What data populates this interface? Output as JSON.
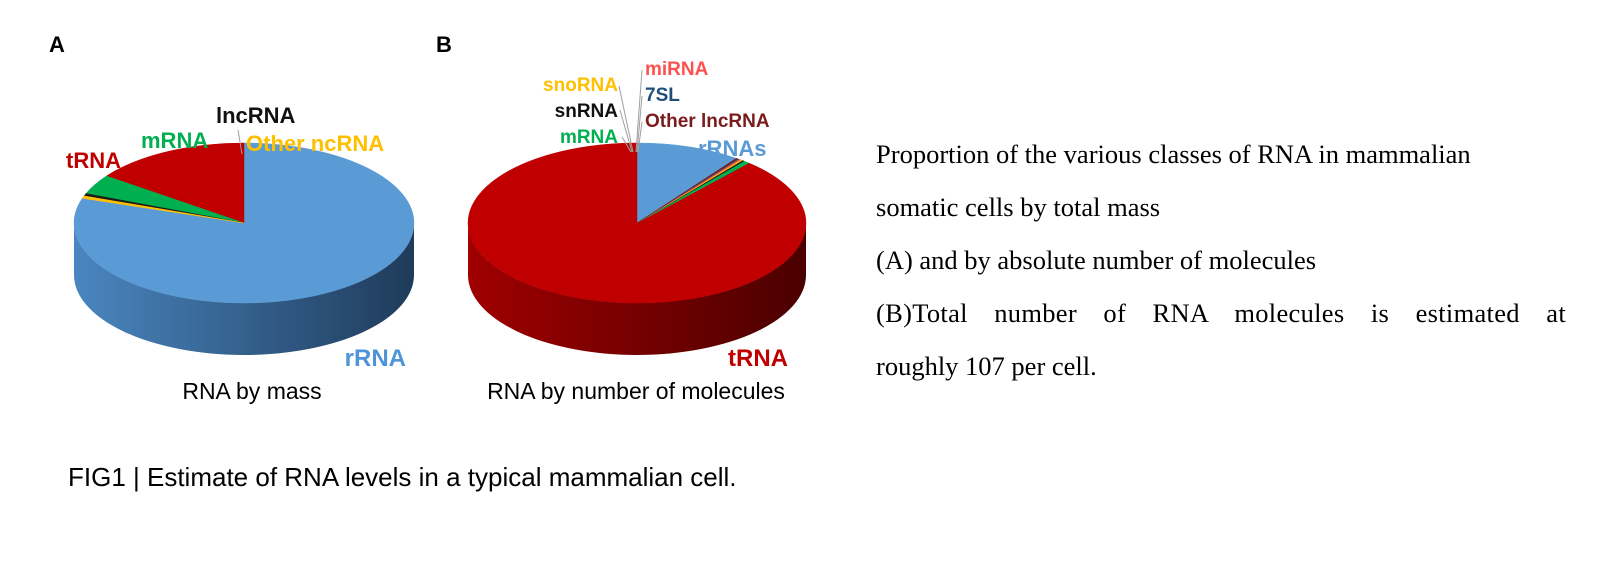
{
  "panel_labels": {
    "a": "A",
    "b": "B"
  },
  "chart_data": [
    {
      "type": "pie",
      "panel": "A",
      "title": "RNA by mass",
      "style": "3d",
      "slices": [
        {
          "label": "rRNA",
          "value": 80,
          "color": "#5b9bd5"
        },
        {
          "label": "tRNA",
          "value": 15,
          "color": "#c00000"
        },
        {
          "label": "mRNA",
          "value": 4,
          "color": "#00b050"
        },
        {
          "label": "lncRNA",
          "value": 0.5,
          "color": "#1a1a1a"
        },
        {
          "label": "Other ncRNA",
          "value": 0.5,
          "color": "#ffc000"
        }
      ],
      "label_colors": {
        "rRNA": "#4f93d8",
        "tRNA": "#c00000",
        "mRNA": "#00b050",
        "lncRNA": "#111111",
        "Other ncRNA": "#ffc000"
      }
    },
    {
      "type": "pie",
      "panel": "B",
      "title": "RNA by number of molecules",
      "style": "3d",
      "slices": [
        {
          "label": "rRNAs",
          "value": 10,
          "color": "#5b9bd5"
        },
        {
          "label": "tRNA",
          "value": 88.5,
          "color": "#c00000"
        },
        {
          "label": "mRNA",
          "value": 0.6,
          "color": "#00b050"
        },
        {
          "label": "snRNA",
          "value": 0.2,
          "color": "#1a1a1a"
        },
        {
          "label": "snoRNA",
          "value": 0.2,
          "color": "#ffc000"
        },
        {
          "label": "miRNA",
          "value": 0.2,
          "color": "#ff5050"
        },
        {
          "label": "7SL",
          "value": 0.15,
          "color": "#1f4e79"
        },
        {
          "label": "Other lncRNA",
          "value": 0.15,
          "color": "#7b1b1b"
        }
      ],
      "label_colors": {
        "rRNAs": "#5b9bd5",
        "tRNA": "#c00000",
        "mRNA": "#00b050",
        "snRNA": "#111111",
        "snoRNA": "#ffc000",
        "miRNA": "#ff5050",
        "7SL": "#1f4e79",
        "Other lncRNA": "#7b1b1b"
      }
    }
  ],
  "caption": "FIG1 | Estimate of RNA levels in a typical mammalian cell.",
  "side_text": {
    "line1": "Proportion of the various classes of RNA in mammalian",
    "line2": "somatic cells by total mass",
    "line3": "(A) and by absolute number of molecules",
    "line4": "(B)Total number of RNA molecules is estimated at",
    "line5": "roughly 107 per cell."
  }
}
